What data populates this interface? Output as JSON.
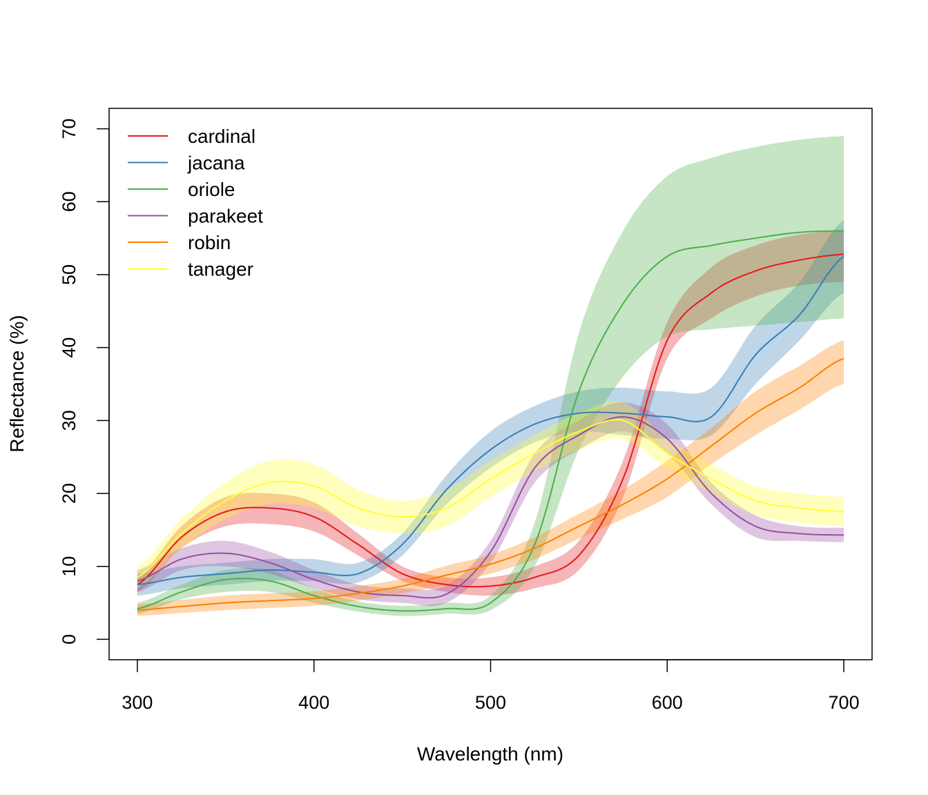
{
  "chart_data": {
    "type": "line",
    "title": "",
    "xlabel": "Wavelength (nm)",
    "ylabel": "Reflectance (%)",
    "xlim": [
      284,
      716
    ],
    "ylim": [
      -2.8,
      72.8
    ],
    "xticks": [
      "300",
      "400",
      "500",
      "600",
      "700"
    ],
    "yticks": [
      "0",
      "10",
      "20",
      "30",
      "40",
      "50",
      "60",
      "70"
    ],
    "grid": false,
    "legend_position": "top-left",
    "bands": "shaded band = spread around each mean spectrum",
    "x": [
      300,
      325,
      350,
      375,
      400,
      425,
      450,
      475,
      500,
      525,
      550,
      575,
      600,
      625,
      650,
      675,
      700
    ],
    "series": [
      {
        "name": "cardinal",
        "color": "#e41a1c",
        "values": [
          7.5,
          14.0,
          17.5,
          18.0,
          16.8,
          13.0,
          9.0,
          7.5,
          7.3,
          8.5,
          11.5,
          22.0,
          41.0,
          47.5,
          50.5,
          52.0,
          52.8
        ],
        "lower": [
          6.5,
          12.5,
          15.5,
          15.8,
          14.8,
          11.5,
          8.0,
          6.5,
          6.0,
          7.0,
          9.5,
          19.5,
          38.5,
          44.0,
          47.0,
          48.5,
          49.0
        ],
        "upper": [
          8.5,
          15.5,
          19.5,
          20.0,
          18.8,
          14.5,
          10.0,
          8.5,
          8.5,
          10.0,
          13.5,
          24.5,
          43.5,
          51.0,
          54.0,
          55.5,
          56.0
        ]
      },
      {
        "name": "jacana",
        "color": "#377eb8",
        "values": [
          7.5,
          8.5,
          9.0,
          9.5,
          9.2,
          9.0,
          13.0,
          20.5,
          26.0,
          29.5,
          31.0,
          31.0,
          30.5,
          30.5,
          39.0,
          44.5,
          52.5
        ],
        "lower": [
          6.0,
          7.0,
          7.5,
          8.0,
          8.0,
          7.8,
          11.5,
          18.5,
          23.5,
          27.0,
          28.5,
          28.0,
          27.5,
          28.0,
          35.0,
          41.0,
          47.5
        ],
        "upper": [
          9.0,
          10.0,
          10.5,
          11.0,
          11.0,
          10.5,
          14.5,
          22.5,
          28.5,
          32.0,
          34.0,
          34.5,
          34.0,
          34.5,
          43.0,
          49.0,
          57.5
        ]
      },
      {
        "name": "oriole",
        "color": "#4daf4a",
        "values": [
          4.2,
          6.5,
          8.2,
          8.0,
          6.0,
          4.5,
          3.9,
          4.2,
          5.0,
          13.0,
          34.0,
          46.0,
          52.5,
          54.0,
          55.0,
          55.8,
          56.0
        ],
        "lower": [
          3.5,
          5.5,
          6.5,
          6.5,
          5.0,
          3.8,
          3.2,
          3.5,
          4.0,
          10.0,
          26.0,
          36.0,
          41.5,
          42.5,
          43.0,
          43.5,
          44.0
        ],
        "upper": [
          5.0,
          7.5,
          9.5,
          9.5,
          7.0,
          5.2,
          4.6,
          5.0,
          6.0,
          16.0,
          42.0,
          56.0,
          63.5,
          66.0,
          67.5,
          68.5,
          69.0
        ]
      },
      {
        "name": "parakeet",
        "color": "#984ea3",
        "values": [
          8.0,
          11.0,
          11.8,
          10.5,
          8.2,
          6.5,
          6.0,
          6.2,
          12.0,
          23.5,
          28.0,
          30.5,
          27.5,
          20.0,
          15.5,
          14.5,
          14.3
        ],
        "lower": [
          6.5,
          9.5,
          10.0,
          9.0,
          7.0,
          5.5,
          5.0,
          5.0,
          10.5,
          21.5,
          26.0,
          28.5,
          25.5,
          18.5,
          14.0,
          13.5,
          13.3
        ],
        "upper": [
          9.5,
          12.5,
          13.5,
          12.0,
          9.5,
          7.5,
          7.0,
          7.4,
          13.5,
          25.5,
          30.0,
          32.5,
          29.5,
          21.5,
          17.0,
          15.5,
          15.3
        ],
        "note": "band clipped to plausible range"
      },
      {
        "name": "robin",
        "color": "#ff7f00",
        "values": [
          4.0,
          4.5,
          5.0,
          5.3,
          5.6,
          6.3,
          7.3,
          8.8,
          10.3,
          12.5,
          15.5,
          18.5,
          22.0,
          26.5,
          31.0,
          34.5,
          38.5
        ],
        "lower": [
          3.2,
          3.6,
          4.0,
          4.3,
          4.6,
          5.3,
          6.3,
          7.5,
          9.0,
          11.0,
          13.8,
          16.5,
          19.5,
          24.0,
          28.0,
          31.5,
          35.0
        ],
        "upper": [
          4.8,
          5.4,
          6.0,
          6.3,
          6.6,
          7.3,
          8.3,
          10.1,
          11.6,
          14.0,
          17.2,
          20.5,
          24.5,
          29.0,
          34.0,
          37.5,
          41.0
        ]
      },
      {
        "name": "tanager",
        "color": "#ffff33",
        "values": [
          8.5,
          14.5,
          19.0,
          21.5,
          21.0,
          18.0,
          16.8,
          18.0,
          22.0,
          25.5,
          28.5,
          30.0,
          25.5,
          22.0,
          19.0,
          18.0,
          17.5
        ],
        "lower": [
          7.0,
          12.5,
          16.5,
          18.5,
          18.0,
          15.5,
          14.5,
          15.5,
          19.5,
          23.0,
          26.0,
          27.5,
          23.5,
          20.0,
          17.0,
          16.0,
          15.5
        ],
        "upper": [
          10.0,
          16.5,
          21.5,
          24.5,
          24.0,
          20.5,
          19.0,
          20.5,
          24.5,
          28.0,
          31.0,
          32.5,
          27.5,
          24.0,
          21.0,
          20.0,
          19.5
        ]
      }
    ]
  }
}
